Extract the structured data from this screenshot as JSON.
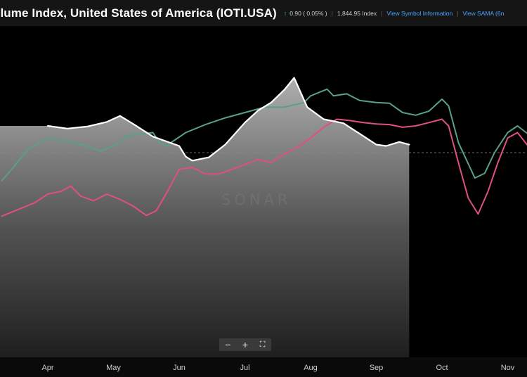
{
  "header": {
    "title": "olume Index, United States of America (IOTI.USA)",
    "change": "0.90 ( 0.05% )",
    "value": "1,844.95 Index",
    "link_symbol": "View Symbol Information",
    "link_sama": "View SAMA (6n"
  },
  "watermark": "SONAR",
  "zoom": {
    "minus": "−",
    "plus": "+",
    "fullscreen": "⛶"
  },
  "colors": {
    "index_line": "#ffffff",
    "green_series": "#5a9e8d",
    "pink_series": "#e0507e",
    "reference_line": "#8a8a8a",
    "background": "#000000"
  },
  "chart_data": {
    "type": "line",
    "title": "",
    "xlabel": "",
    "ylabel": "",
    "x_ticks": [
      "Apr",
      "May",
      "Jun",
      "Jul",
      "Aug",
      "Sep",
      "Oct",
      "Nov"
    ],
    "y_reference_value": 0.5,
    "series": [
      {
        "values": [
          [
            0.0,
            0.9
          ],
          [
            0.3,
            0.86
          ],
          [
            0.6,
            0.89
          ],
          [
            0.9,
            0.96
          ],
          [
            1.1,
            1.05
          ],
          [
            1.3,
            0.93
          ],
          [
            1.6,
            0.74
          ],
          [
            2.0,
            0.6
          ],
          [
            2.1,
            0.44
          ],
          [
            2.2,
            0.38
          ],
          [
            2.45,
            0.43
          ],
          [
            2.7,
            0.62
          ],
          [
            3.0,
            0.95
          ],
          [
            3.2,
            1.13
          ],
          [
            3.4,
            1.25
          ],
          [
            3.6,
            1.44
          ],
          [
            3.75,
            1.62
          ],
          [
            3.95,
            1.18
          ],
          [
            4.2,
            1.0
          ],
          [
            4.5,
            0.94
          ],
          [
            4.8,
            0.75
          ],
          [
            5.0,
            0.62
          ],
          [
            5.15,
            0.6
          ],
          [
            5.35,
            0.66
          ],
          [
            5.5,
            0.62
          ]
        ]
      },
      {
        "values": [
          [
            -0.7,
            0.08
          ],
          [
            -0.55,
            0.25
          ],
          [
            -0.3,
            0.55
          ],
          [
            0.0,
            0.72
          ],
          [
            0.3,
            0.67
          ],
          [
            0.6,
            0.6
          ],
          [
            0.8,
            0.52
          ],
          [
            1.1,
            0.65
          ],
          [
            1.2,
            0.75
          ],
          [
            1.6,
            0.8
          ],
          [
            1.7,
            0.65
          ],
          [
            1.8,
            0.6
          ],
          [
            2.1,
            0.8
          ],
          [
            2.4,
            0.92
          ],
          [
            2.7,
            1.02
          ],
          [
            3.0,
            1.1
          ],
          [
            3.3,
            1.18
          ],
          [
            3.6,
            1.18
          ],
          [
            3.9,
            1.25
          ],
          [
            4.0,
            1.35
          ],
          [
            4.25,
            1.45
          ],
          [
            4.35,
            1.35
          ],
          [
            4.55,
            1.38
          ],
          [
            4.75,
            1.28
          ],
          [
            5.0,
            1.25
          ],
          [
            5.2,
            1.24
          ],
          [
            5.4,
            1.1
          ],
          [
            5.6,
            1.06
          ],
          [
            5.8,
            1.12
          ],
          [
            6.0,
            1.3
          ],
          [
            6.1,
            1.2
          ],
          [
            6.25,
            0.65
          ],
          [
            6.5,
            0.12
          ],
          [
            6.65,
            0.19
          ],
          [
            6.8,
            0.5
          ],
          [
            7.0,
            0.8
          ],
          [
            7.15,
            0.9
          ],
          [
            7.35,
            0.75
          ]
        ]
      },
      {
        "values": [
          [
            -0.7,
            -0.45
          ],
          [
            -0.45,
            -0.35
          ],
          [
            -0.2,
            -0.25
          ],
          [
            0.0,
            -0.12
          ],
          [
            0.2,
            -0.08
          ],
          [
            0.35,
            0.0
          ],
          [
            0.5,
            -0.15
          ],
          [
            0.7,
            -0.22
          ],
          [
            0.9,
            -0.12
          ],
          [
            1.1,
            -0.2
          ],
          [
            1.3,
            -0.3
          ],
          [
            1.5,
            -0.44
          ],
          [
            1.65,
            -0.37
          ],
          [
            1.8,
            -0.12
          ],
          [
            2.0,
            0.25
          ],
          [
            2.2,
            0.28
          ],
          [
            2.4,
            0.18
          ],
          [
            2.6,
            0.18
          ],
          [
            2.8,
            0.25
          ],
          [
            3.0,
            0.32
          ],
          [
            3.2,
            0.4
          ],
          [
            3.4,
            0.35
          ],
          [
            3.6,
            0.48
          ],
          [
            3.8,
            0.58
          ],
          [
            4.0,
            0.72
          ],
          [
            4.2,
            0.88
          ],
          [
            4.4,
            1.0
          ],
          [
            4.6,
            0.98
          ],
          [
            4.8,
            0.95
          ],
          [
            5.0,
            0.93
          ],
          [
            5.2,
            0.92
          ],
          [
            5.4,
            0.88
          ],
          [
            5.6,
            0.9
          ],
          [
            5.8,
            0.95
          ],
          [
            6.0,
            1.0
          ],
          [
            6.1,
            0.9
          ],
          [
            6.25,
            0.35
          ],
          [
            6.4,
            -0.18
          ],
          [
            6.55,
            -0.42
          ],
          [
            6.7,
            -0.08
          ],
          [
            6.85,
            0.35
          ],
          [
            7.0,
            0.72
          ],
          [
            7.15,
            0.8
          ],
          [
            7.35,
            0.55
          ]
        ]
      }
    ],
    "xlim": [
      -0.75,
      7.35
    ],
    "ylim": [
      -1.9,
      1.9
    ],
    "grid": false,
    "legend": "none"
  }
}
